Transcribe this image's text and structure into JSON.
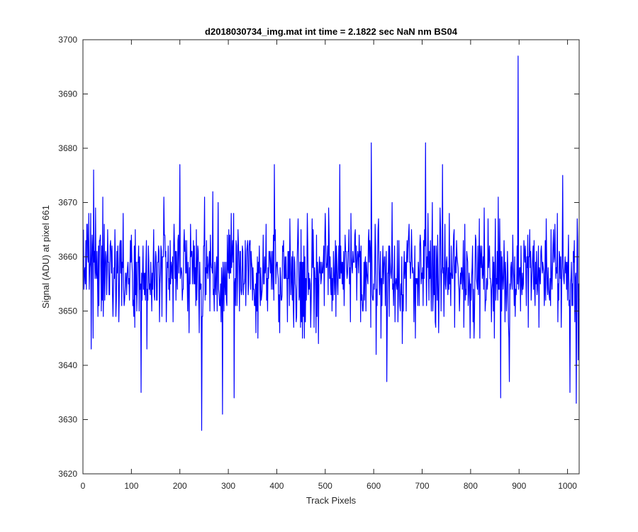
{
  "chart_data": {
    "type": "line",
    "title": "d2018030734_img.mat int time = 2.1822 sec  NaN nm BS04",
    "xlabel": "Track Pixels",
    "ylabel": "Signal (ADU) at pixel 661",
    "xlim": [
      0,
      1024
    ],
    "ylim": [
      3620,
      3700
    ],
    "xticks": [
      0,
      100,
      200,
      300,
      400,
      500,
      600,
      700,
      800,
      900,
      1000
    ],
    "yticks": [
      3620,
      3630,
      3640,
      3650,
      3660,
      3670,
      3680,
      3690,
      3700
    ],
    "grid": false,
    "legend": "none",
    "colors": {
      "series": "#0000ff",
      "axes": "#262626",
      "background": "#ffffff"
    },
    "series": [
      {
        "x_start": 1,
        "x_step": 1,
        "count": 1024,
        "mean": 3657,
        "stdev": 6.5,
        "min": 3628,
        "max": 3697,
        "notable_points": [
          {
            "x": 22,
            "y": 3676
          },
          {
            "x": 17,
            "y": 3643
          },
          {
            "x": 120,
            "y": 3635
          },
          {
            "x": 200,
            "y": 3677
          },
          {
            "x": 245,
            "y": 3628
          },
          {
            "x": 268,
            "y": 3672
          },
          {
            "x": 288,
            "y": 3631
          },
          {
            "x": 312,
            "y": 3634
          },
          {
            "x": 395,
            "y": 3677
          },
          {
            "x": 530,
            "y": 3677
          },
          {
            "x": 595,
            "y": 3681
          },
          {
            "x": 627,
            "y": 3637
          },
          {
            "x": 707,
            "y": 3681
          },
          {
            "x": 742,
            "y": 3677
          },
          {
            "x": 862,
            "y": 3634
          },
          {
            "x": 880,
            "y": 3637
          },
          {
            "x": 898,
            "y": 3697
          },
          {
            "x": 990,
            "y": 3675
          },
          {
            "x": 1005,
            "y": 3635
          },
          {
            "x": 1018,
            "y": 3633
          },
          {
            "x": 1022,
            "y": 3641
          }
        ]
      }
    ]
  }
}
